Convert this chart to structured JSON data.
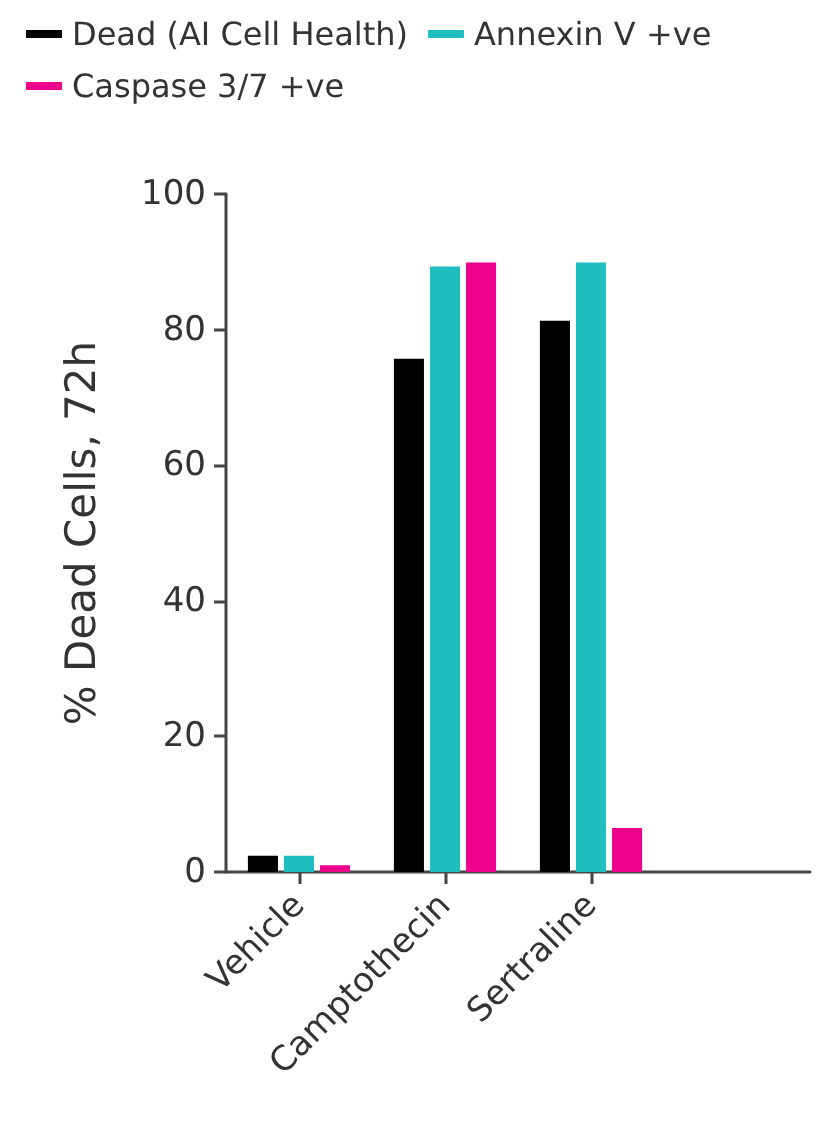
{
  "chart_data": {
    "type": "bar",
    "ylabel": "% Dead Cells, 72h",
    "categories": [
      "Vehicle",
      "Camptothecin",
      "Sertraline",
      null
    ],
    "series": [
      {
        "name": "Dead (AI Cell Health)",
        "color": "#000000",
        "values": [
          2.4,
          75.7,
          81.3,
          null
        ]
      },
      {
        "name": "Annexin V +ve",
        "color": "#20bfbf",
        "values": [
          2.4,
          89.3,
          89.9,
          null
        ]
      },
      {
        "name": "Caspase 3/7 +ve",
        "color": "#ec008c",
        "values": [
          1.0,
          89.9,
          6.5,
          null
        ]
      }
    ],
    "ylim": [
      0,
      100
    ],
    "yticks": [
      0,
      20,
      40,
      60,
      80,
      100
    ],
    "grid": false,
    "legend": "top left"
  }
}
